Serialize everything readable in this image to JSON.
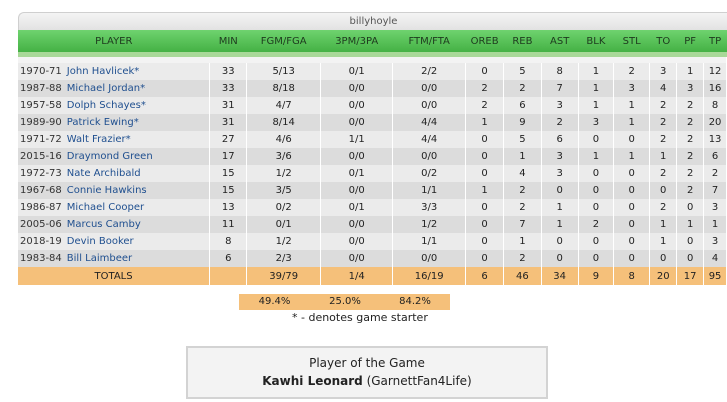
{
  "title": "billyhoyle",
  "columns": [
    "PLAYER",
    "MIN",
    "FGM/FGA",
    "3PM/3PA",
    "FTM/FTA",
    "OREB",
    "REB",
    "AST",
    "BLK",
    "STL",
    "TO",
    "PF",
    "TP"
  ],
  "players": [
    {
      "season": "1970-71",
      "name": "John Havlicek*",
      "min": "33",
      "fg": "5/13",
      "tp3": "0/1",
      "ft": "2/2",
      "oreb": "0",
      "reb": "5",
      "ast": "8",
      "blk": "1",
      "stl": "2",
      "to": "3",
      "pf": "1",
      "pts": "12"
    },
    {
      "season": "1987-88",
      "name": "Michael Jordan*",
      "min": "33",
      "fg": "8/18",
      "tp3": "0/0",
      "ft": "0/0",
      "oreb": "2",
      "reb": "2",
      "ast": "7",
      "blk": "1",
      "stl": "3",
      "to": "4",
      "pf": "3",
      "pts": "16"
    },
    {
      "season": "1957-58",
      "name": "Dolph Schayes*",
      "min": "31",
      "fg": "4/7",
      "tp3": "0/0",
      "ft": "0/0",
      "oreb": "2",
      "reb": "6",
      "ast": "3",
      "blk": "1",
      "stl": "1",
      "to": "2",
      "pf": "2",
      "pts": "8"
    },
    {
      "season": "1989-90",
      "name": "Patrick Ewing*",
      "min": "31",
      "fg": "8/14",
      "tp3": "0/0",
      "ft": "4/4",
      "oreb": "1",
      "reb": "9",
      "ast": "2",
      "blk": "3",
      "stl": "1",
      "to": "2",
      "pf": "2",
      "pts": "20"
    },
    {
      "season": "1971-72",
      "name": "Walt Frazier*",
      "min": "27",
      "fg": "4/6",
      "tp3": "1/1",
      "ft": "4/4",
      "oreb": "0",
      "reb": "5",
      "ast": "6",
      "blk": "0",
      "stl": "0",
      "to": "2",
      "pf": "2",
      "pts": "13"
    },
    {
      "season": "2015-16",
      "name": "Draymond Green",
      "min": "17",
      "fg": "3/6",
      "tp3": "0/0",
      "ft": "0/0",
      "oreb": "0",
      "reb": "1",
      "ast": "3",
      "blk": "1",
      "stl": "1",
      "to": "1",
      "pf": "2",
      "pts": "6"
    },
    {
      "season": "1972-73",
      "name": "Nate Archibald",
      "min": "15",
      "fg": "1/2",
      "tp3": "0/1",
      "ft": "0/2",
      "oreb": "0",
      "reb": "4",
      "ast": "3",
      "blk": "0",
      "stl": "0",
      "to": "2",
      "pf": "2",
      "pts": "2"
    },
    {
      "season": "1967-68",
      "name": "Connie Hawkins",
      "min": "15",
      "fg": "3/5",
      "tp3": "0/0",
      "ft": "1/1",
      "oreb": "1",
      "reb": "2",
      "ast": "0",
      "blk": "0",
      "stl": "0",
      "to": "0",
      "pf": "2",
      "pts": "7"
    },
    {
      "season": "1986-87",
      "name": "Michael Cooper",
      "min": "13",
      "fg": "0/2",
      "tp3": "0/1",
      "ft": "3/3",
      "oreb": "0",
      "reb": "2",
      "ast": "1",
      "blk": "0",
      "stl": "0",
      "to": "2",
      "pf": "0",
      "pts": "3"
    },
    {
      "season": "2005-06",
      "name": "Marcus Camby",
      "min": "11",
      "fg": "0/1",
      "tp3": "0/0",
      "ft": "1/2",
      "oreb": "0",
      "reb": "7",
      "ast": "1",
      "blk": "2",
      "stl": "0",
      "to": "1",
      "pf": "1",
      "pts": "1"
    },
    {
      "season": "2018-19",
      "name": "Devin Booker",
      "min": "8",
      "fg": "1/2",
      "tp3": "0/0",
      "ft": "1/1",
      "oreb": "0",
      "reb": "1",
      "ast": "0",
      "blk": "0",
      "stl": "0",
      "to": "1",
      "pf": "0",
      "pts": "3"
    },
    {
      "season": "1983-84",
      "name": "Bill Laimbeer",
      "min": "6",
      "fg": "2/3",
      "tp3": "0/0",
      "ft": "0/0",
      "oreb": "0",
      "reb": "2",
      "ast": "0",
      "blk": "0",
      "stl": "0",
      "to": "0",
      "pf": "0",
      "pts": "4"
    }
  ],
  "totals": {
    "label": "TOTALS",
    "fg": "39/79",
    "tp3": "1/4",
    "ft": "16/19",
    "oreb": "6",
    "reb": "46",
    "ast": "34",
    "blk": "9",
    "stl": "8",
    "to": "20",
    "pf": "17",
    "pts": "95"
  },
  "percentages": {
    "fg": "49.4%",
    "tp3": "25.0%",
    "ft": "84.2%"
  },
  "starter_note": "* - denotes game starter",
  "player_of_game": {
    "label": "Player of the Game",
    "name": "Kawhi Leonard",
    "user": "(GarnettFan4Life)"
  }
}
